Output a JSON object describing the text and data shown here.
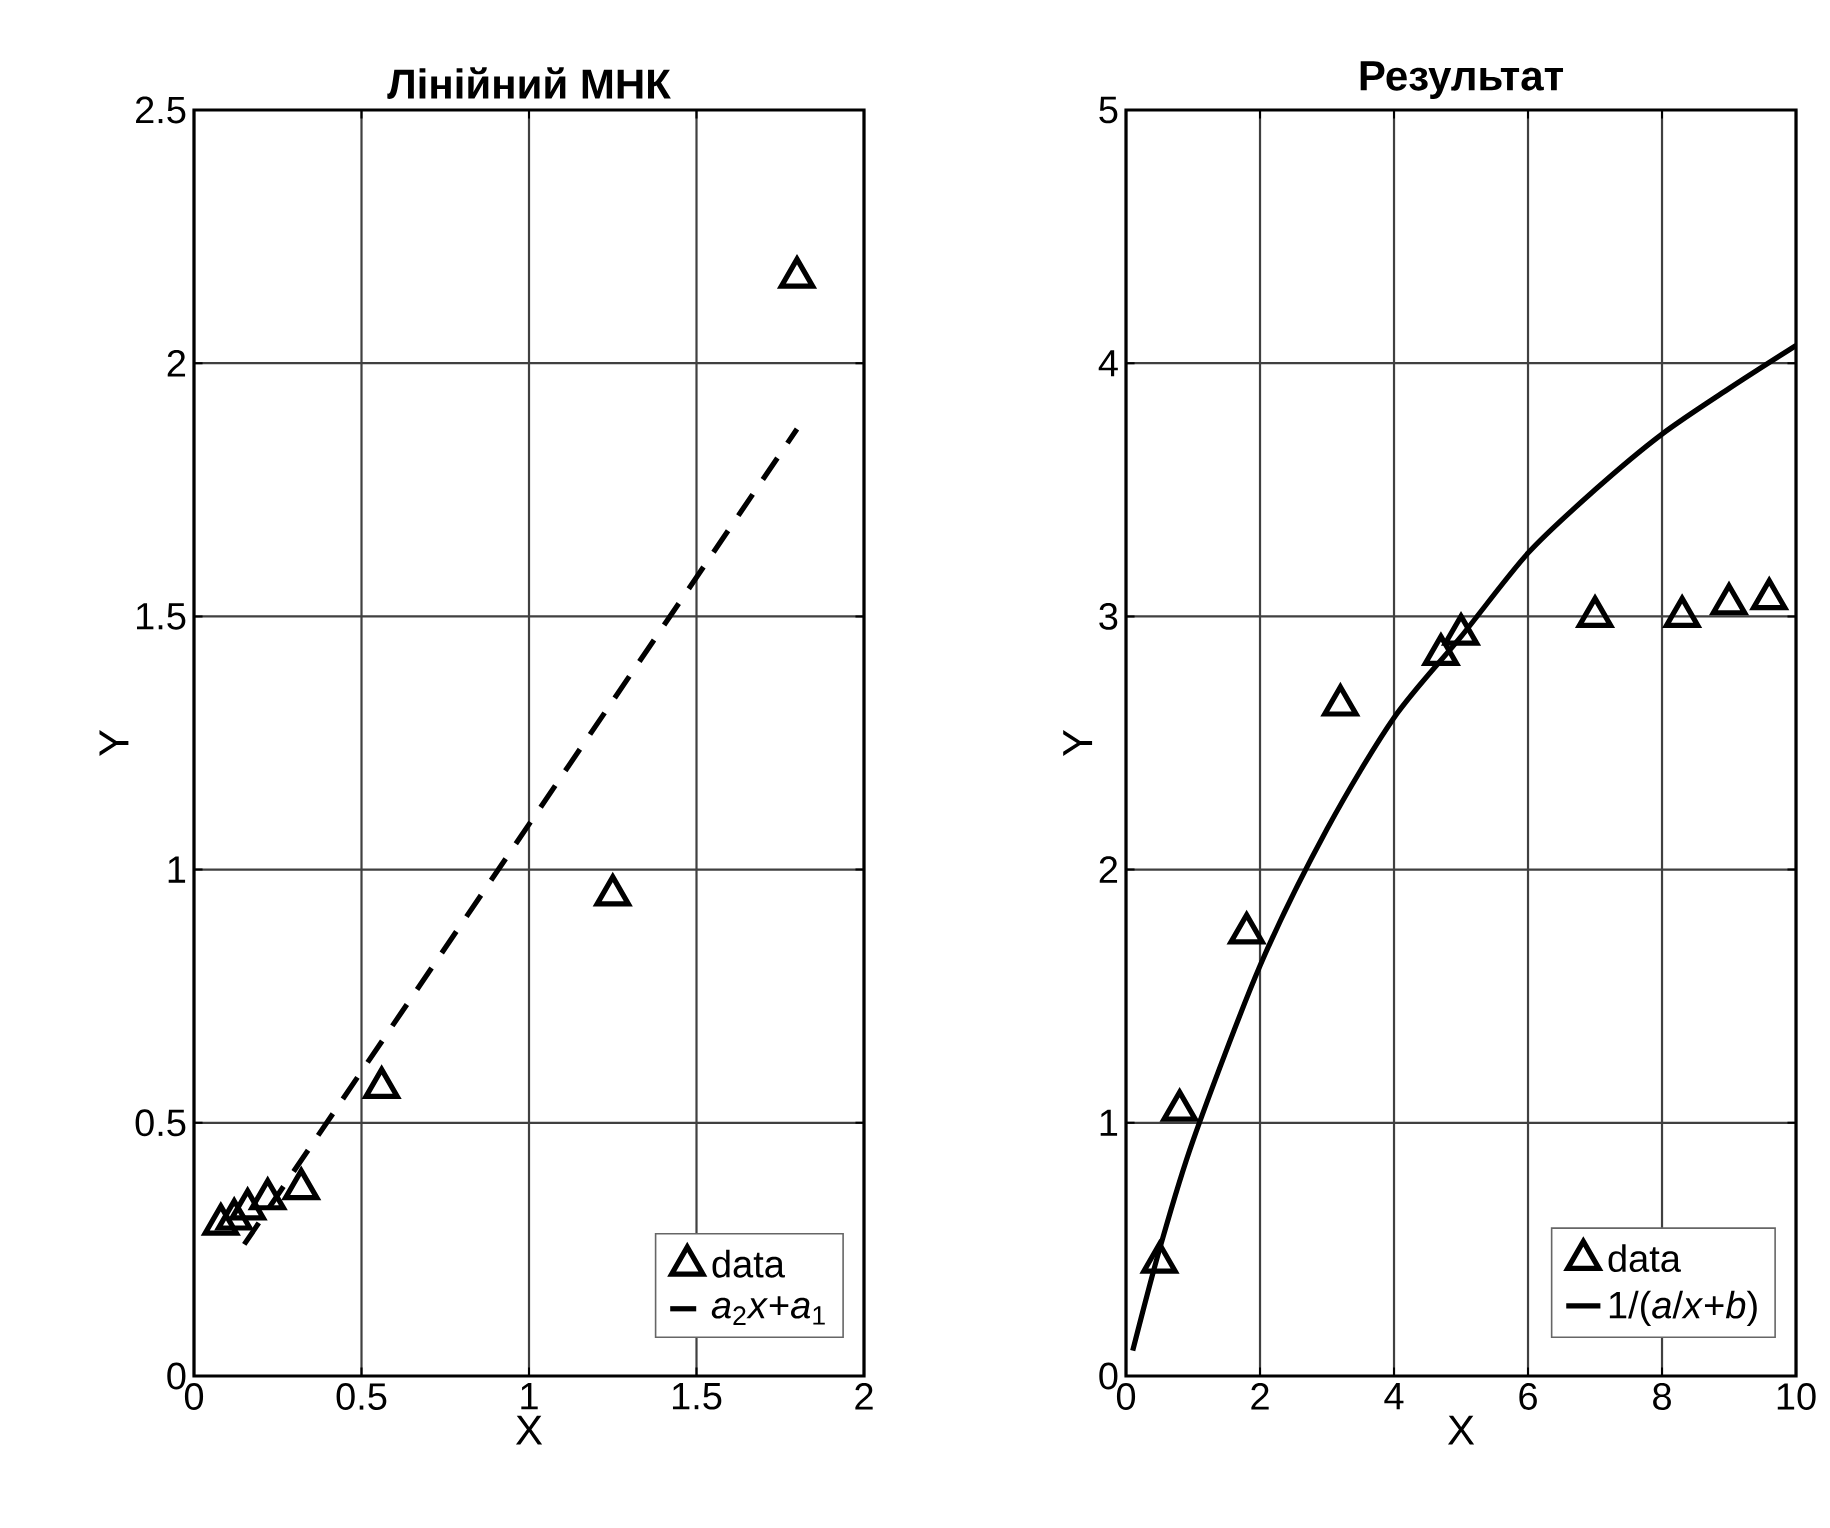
{
  "chart_data": [
    {
      "type": "scatter",
      "title": "Лінійний МНК",
      "xlabel": "X",
      "ylabel": "Y",
      "xlim": [
        0,
        2
      ],
      "ylim": [
        0,
        2.5
      ],
      "xticks": [
        0,
        0.5,
        1,
        1.5,
        2
      ],
      "yticks": [
        0,
        0.5,
        1,
        1.5,
        2,
        2.5
      ],
      "grid": true,
      "legend": "bottom right",
      "series": [
        {
          "name": "data",
          "color": "#000000",
          "marker": "triangle",
          "x": [
            0.08,
            0.12,
            0.16,
            0.22,
            0.32,
            0.56,
            1.25,
            1.8
          ],
          "values": [
            0.3,
            0.31,
            0.33,
            0.35,
            0.37,
            0.57,
            0.95,
            2.17
          ]
        },
        {
          "name": "*a*$_{2}$*x*+*a*$_{1}$",
          "type": "line",
          "color": "#000000",
          "line_style": "dashed",
          "x": [
            0.15,
            1.8
          ],
          "values": [
            0.26,
            1.87
          ]
        }
      ]
    },
    {
      "type": "scatter",
      "title": "Результат",
      "xlabel": "X",
      "ylabel": "Y",
      "xlim": [
        0,
        10
      ],
      "ylim": [
        0,
        5
      ],
      "xticks": [
        0,
        2,
        4,
        6,
        8,
        10
      ],
      "yticks": [
        0,
        1,
        2,
        3,
        4,
        5
      ],
      "grid": true,
      "legend": "bottom right",
      "series": [
        {
          "name": "data",
          "color": "#000000",
          "marker": "triangle",
          "x": [
            0.5,
            0.8,
            1.8,
            3.2,
            4.7,
            5,
            7,
            8.3,
            9,
            9.6
          ],
          "values": [
            0.45,
            1.05,
            1.75,
            2.65,
            2.85,
            2.93,
            3.0,
            3.0,
            3.05,
            3.07
          ]
        },
        {
          "name": "1/(*a*/*x*+*b*)",
          "type": "line",
          "color": "#000000",
          "line_style": "solid",
          "x": [
            0.1,
            0.5,
            1,
            2,
            3,
            4,
            5,
            6,
            7,
            8,
            9,
            10
          ],
          "values": [
            0.1,
            0.5,
            0.93,
            1.62,
            2.16,
            2.6,
            2.92,
            3.25,
            3.5,
            3.72,
            3.9,
            4.07
          ]
        }
      ]
    }
  ]
}
